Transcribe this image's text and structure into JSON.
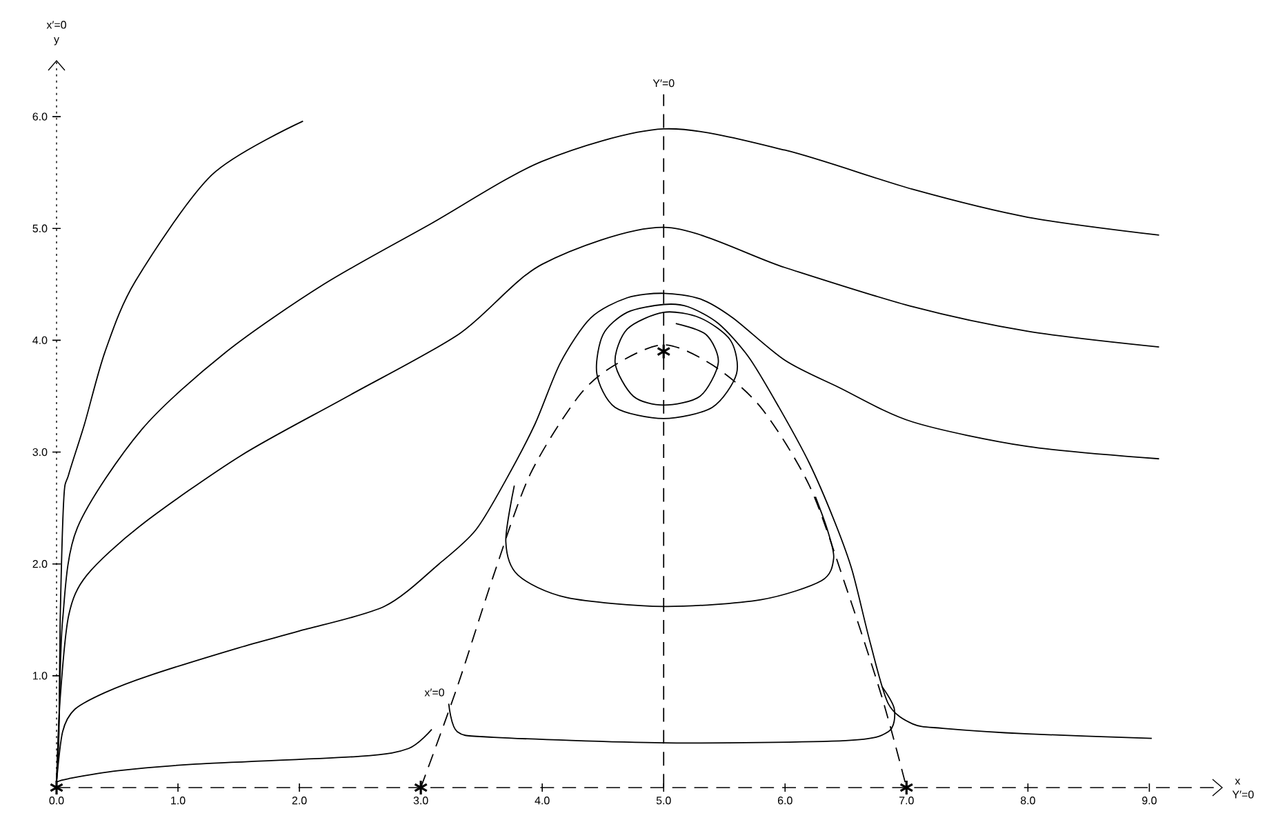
{
  "chart_data": {
    "type": "line",
    "xlabel": "x",
    "ylabel": "y",
    "xlim": [
      0,
      9.6
    ],
    "ylim": [
      0,
      6.5
    ],
    "xticks": [
      {
        "value": 0,
        "label": "0.0"
      },
      {
        "value": 1,
        "label": "1.0"
      },
      {
        "value": 2,
        "label": "2.0"
      },
      {
        "value": 3,
        "label": "3.0"
      },
      {
        "value": 4,
        "label": "4.0"
      },
      {
        "value": 5,
        "label": "5.0"
      },
      {
        "value": 6,
        "label": "6.0"
      },
      {
        "value": 7,
        "label": "7.0"
      },
      {
        "value": 8,
        "label": "8.0"
      },
      {
        "value": 9,
        "label": "9.0"
      }
    ],
    "yticks": [
      {
        "value": 1,
        "label": "1.0"
      },
      {
        "value": 2,
        "label": "2.0"
      },
      {
        "value": 3,
        "label": "3.0"
      },
      {
        "value": 4,
        "label": "4.0"
      },
      {
        "value": 5,
        "label": "5.0"
      },
      {
        "value": 6,
        "label": "6.0"
      }
    ],
    "grid": false,
    "series": [
      {
        "color": "#000000",
        "line_style": "solid",
        "x": [
          2.03,
          1.28,
          0.65,
          0.4,
          0.23,
          0.1,
          0.06,
          0.03,
          0.02,
          0.0
        ],
        "values": [
          5.96,
          5.48,
          4.53,
          3.9,
          3.25,
          2.8,
          2.59,
          1.5,
          0.5,
          0.05
        ]
      },
      {
        "color": "#000000",
        "line_style": "solid",
        "x": [
          9.08,
          8.0,
          7.05,
          6.0,
          5.0,
          4.0,
          3.08,
          2.2,
          1.39,
          0.7,
          0.17,
          0.05,
          0.02,
          0.0
        ],
        "values": [
          4.94,
          5.1,
          5.35,
          5.7,
          5.89,
          5.6,
          5.04,
          4.5,
          3.89,
          3.2,
          2.32,
          1.5,
          0.6,
          0.05
        ]
      },
      {
        "color": "#000000",
        "line_style": "solid",
        "x": [
          9.08,
          8.0,
          7.05,
          6.0,
          5.0,
          4.0,
          3.32,
          2.4,
          1.52,
          0.7,
          0.25,
          0.1,
          0.03,
          0.0
        ],
        "values": [
          3.94,
          4.08,
          4.3,
          4.65,
          5.01,
          4.68,
          4.06,
          3.5,
          2.97,
          2.35,
          1.9,
          1.54,
          0.8,
          0.05
        ]
      },
      {
        "color": "#000000",
        "line_style": "solid",
        "x": [
          9.08,
          8.0,
          7.05,
          6.44,
          6.0,
          5.57,
          5.3,
          5.0,
          4.7,
          4.4,
          4.15,
          3.94,
          3.7,
          3.45,
          3.15,
          2.7,
          2.0,
          1.5,
          0.76,
          0.4,
          0.15,
          0.05,
          0.0
        ],
        "values": [
          2.94,
          3.05,
          3.27,
          3.58,
          3.82,
          4.2,
          4.37,
          4.42,
          4.38,
          4.2,
          3.8,
          3.25,
          2.75,
          2.3,
          2.0,
          1.62,
          1.4,
          1.25,
          1.0,
          0.85,
          0.7,
          0.5,
          0.05
        ]
      },
      {
        "color": "#000000",
        "line_style": "solid",
        "x": [
          9.02,
          8.0,
          7.3,
          7.05,
          6.85,
          6.7,
          6.55,
          6.4,
          6.2,
          5.95,
          5.7,
          5.45,
          5.2,
          5.0,
          4.7,
          4.5,
          4.45,
          4.6,
          5.0,
          5.4,
          5.6,
          5.55,
          5.3,
          5.0,
          4.7,
          4.6,
          4.75,
          5.0,
          5.3,
          5.45,
          5.35,
          5.1
        ],
        "values": [
          0.44,
          0.48,
          0.53,
          0.57,
          0.75,
          1.3,
          1.95,
          2.4,
          2.9,
          3.4,
          3.85,
          4.15,
          4.3,
          4.32,
          4.25,
          4.05,
          3.7,
          3.4,
          3.3,
          3.4,
          3.7,
          4.0,
          4.2,
          4.25,
          4.1,
          3.8,
          3.5,
          3.42,
          3.5,
          3.8,
          4.05,
          4.15
        ]
      },
      {
        "color": "#000000",
        "line_style": "solid",
        "x": [
          3.77,
          3.7,
          3.8,
          4.2,
          5.0,
          5.8,
          6.3,
          6.4,
          6.35,
          6.25
        ],
        "values": [
          2.7,
          2.2,
          1.9,
          1.7,
          1.62,
          1.68,
          1.85,
          2.05,
          2.3,
          2.6
        ]
      },
      {
        "color": "#000000",
        "line_style": "solid",
        "x": [
          3.23,
          3.3,
          3.6,
          5.0,
          6.5,
          6.85,
          6.9,
          6.8
        ],
        "values": [
          0.75,
          0.5,
          0.45,
          0.4,
          0.42,
          0.5,
          0.7,
          0.9
        ]
      },
      {
        "color": "#000000",
        "line_style": "solid",
        "x": [
          3.09,
          2.9,
          2.5,
          1.15,
          0.5,
          0.1,
          0.0
        ],
        "values": [
          0.52,
          0.35,
          0.28,
          0.21,
          0.15,
          0.08,
          0.05
        ]
      },
      {
        "name": "x′=0",
        "color": "#000000",
        "line_style": "dashed",
        "x": [
          3.0,
          3.3,
          3.6,
          3.9,
          4.3,
          4.6,
          5.0,
          5.4,
          5.8,
          6.2,
          6.5,
          6.8,
          7.0
        ],
        "values": [
          0.0,
          0.9,
          1.9,
          2.8,
          3.5,
          3.78,
          3.96,
          3.78,
          3.4,
          2.7,
          1.8,
          0.8,
          0.0
        ]
      },
      {
        "name": "Y′=0",
        "color": "#000000",
        "line_style": "dashed",
        "x": [
          5.0,
          5.0
        ],
        "values": [
          0.0,
          6.2
        ]
      },
      {
        "type": "scatter",
        "marker": "cross",
        "color": "#000000",
        "x": [
          0.0,
          3.0,
          5.0,
          7.0
        ],
        "values": [
          0.0,
          0.0,
          3.9,
          0.0
        ]
      }
    ],
    "annotations": [
      "x′=0",
      "Y′=0"
    ]
  }
}
